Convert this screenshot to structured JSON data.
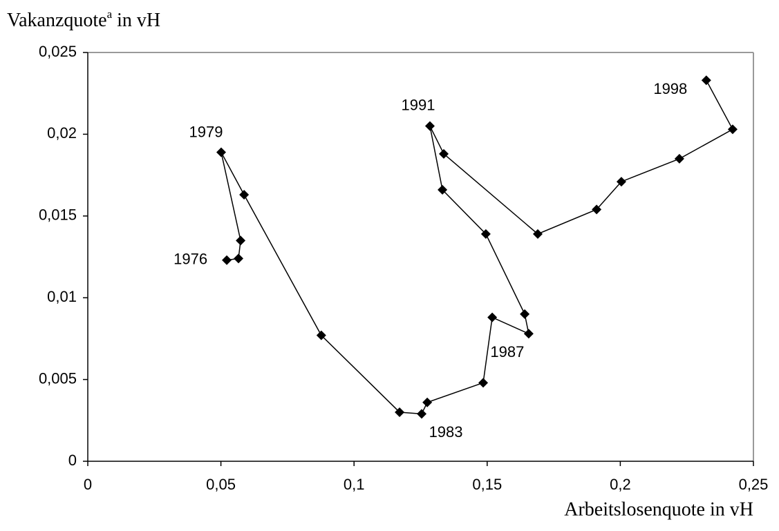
{
  "chart_data": {
    "type": "scatter",
    "connected": true,
    "color": "#000000",
    "x_label": "Arbeitslosenquote in vH",
    "y_label": {
      "text": "Vakanzquote",
      "superscript": "a",
      "suffix": "in vH"
    },
    "x": [
      0.0522,
      0.0566,
      0.0574,
      0.0501,
      0.0587,
      0.0877,
      0.1171,
      0.1254,
      0.1275,
      0.1485,
      0.1519,
      0.1656,
      0.1641,
      0.1495,
      0.1332,
      0.1285,
      0.1337,
      0.169,
      0.1911,
      0.2004,
      0.2222,
      0.2422,
      0.2323
    ],
    "y": [
      0.0123,
      0.0124,
      0.0135,
      0.0189,
      0.0163,
      0.0077,
      0.003,
      0.0029,
      0.0036,
      0.0048,
      0.0088,
      0.0078,
      0.009,
      0.0139,
      0.0166,
      0.0205,
      0.0188,
      0.0139,
      0.0154,
      0.0171,
      0.0185,
      0.0203,
      0.0233
    ],
    "point_labels": [
      "1976",
      null,
      null,
      "1979",
      null,
      null,
      null,
      "1983",
      null,
      null,
      null,
      "1987",
      null,
      null,
      null,
      "1991",
      null,
      null,
      null,
      null,
      null,
      null,
      "1998"
    ],
    "xlim": [
      0,
      0.25
    ],
    "ylim": [
      0,
      0.025
    ],
    "xticks": [
      0,
      {
        "value": 0.05,
        "label": "0,05"
      },
      {
        "value": 0.1,
        "label": "0,1"
      },
      {
        "value": 0.15,
        "label": "0,15"
      },
      {
        "value": 0.2,
        "label": "0,2"
      },
      {
        "value": 0.25,
        "label": "0,25"
      }
    ],
    "yticks": [
      0,
      {
        "value": 0.005,
        "label": "0,005"
      },
      {
        "value": 0.01,
        "label": "0,01"
      },
      {
        "value": 0.015,
        "label": "0,015"
      },
      {
        "value": 0.02,
        "label": "0,02"
      },
      {
        "value": 0.025,
        "label": "0,025"
      }
    ]
  }
}
